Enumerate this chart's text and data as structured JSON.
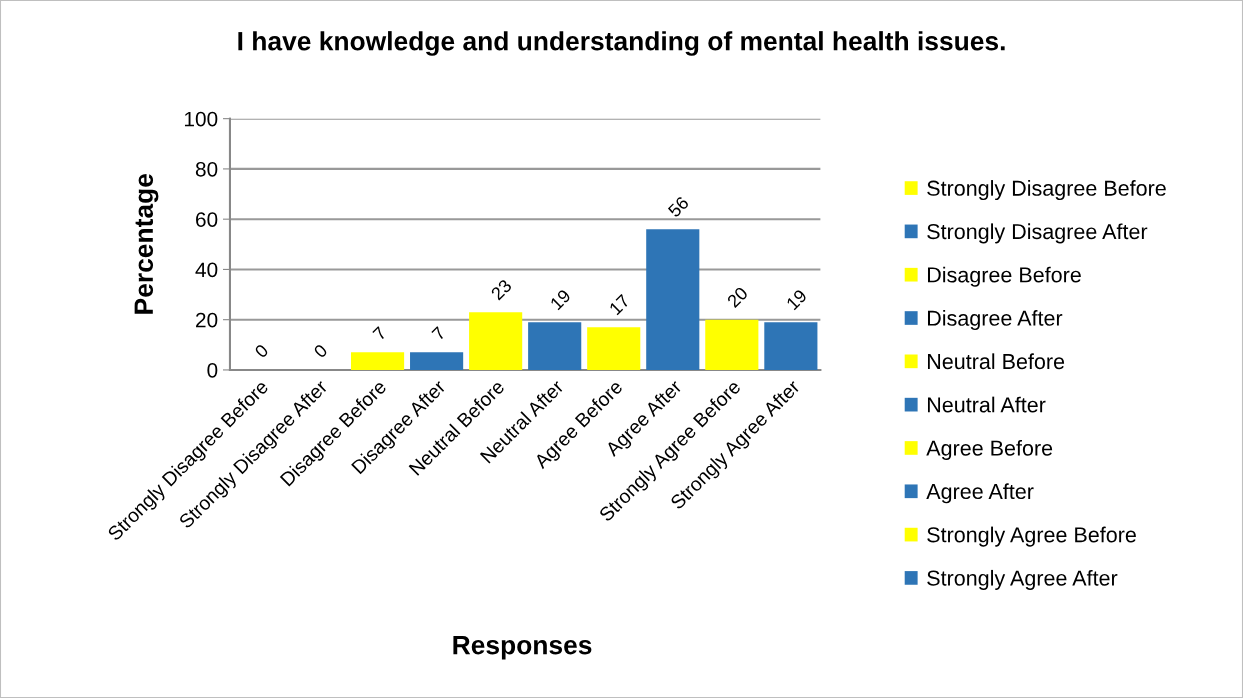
{
  "chart_data": {
    "type": "bar",
    "title": "I have knowledge and understanding of mental health issues.",
    "xlabel": "Responses",
    "ylabel": "Percentage",
    "categories": [
      "Strongly Disagree Before",
      "Strongly Disagree After",
      "Disagree Before",
      "Disagree After",
      "Neutral Before",
      "Neutral After",
      "Agree Before",
      "Agree After",
      "Strongly Agree Before",
      "Strongly Agree After"
    ],
    "series": [
      {
        "name": "Strongly Disagree Before",
        "color": "#ffff00",
        "values": [
          0,
          null,
          null,
          null,
          null,
          null,
          null,
          null,
          null,
          null
        ]
      },
      {
        "name": "Strongly Disagree After",
        "color": "#2e75b6",
        "values": [
          null,
          0,
          null,
          null,
          null,
          null,
          null,
          null,
          null,
          null
        ]
      },
      {
        "name": "Disagree Before",
        "color": "#ffff00",
        "values": [
          null,
          null,
          7,
          null,
          null,
          null,
          null,
          null,
          null,
          null
        ]
      },
      {
        "name": "Disagree After",
        "color": "#2e75b6",
        "values": [
          null,
          null,
          null,
          7,
          null,
          null,
          null,
          null,
          null,
          null
        ]
      },
      {
        "name": "Neutral Before",
        "color": "#ffff00",
        "values": [
          null,
          null,
          null,
          null,
          23,
          null,
          null,
          null,
          null,
          null
        ]
      },
      {
        "name": "Neutral After",
        "color": "#2e75b6",
        "values": [
          null,
          null,
          null,
          null,
          null,
          19,
          null,
          null,
          null,
          null
        ]
      },
      {
        "name": "Agree Before",
        "color": "#ffff00",
        "values": [
          null,
          null,
          null,
          null,
          null,
          null,
          17,
          null,
          null,
          null
        ]
      },
      {
        "name": "Agree After",
        "color": "#2e75b6",
        "values": [
          null,
          null,
          null,
          null,
          null,
          null,
          null,
          56,
          null,
          null
        ]
      },
      {
        "name": "Strongly Agree Before",
        "color": "#ffff00",
        "values": [
          null,
          null,
          null,
          null,
          null,
          null,
          null,
          null,
          20,
          null
        ]
      },
      {
        "name": "Strongly Agree After",
        "color": "#2e75b6",
        "values": [
          null,
          null,
          null,
          null,
          null,
          null,
          null,
          null,
          null,
          19
        ]
      }
    ],
    "ylim": [
      0,
      100
    ],
    "yticks": [
      0,
      20,
      40,
      60,
      80,
      100
    ],
    "grid": "y",
    "data_labels": true,
    "legend": "right"
  }
}
